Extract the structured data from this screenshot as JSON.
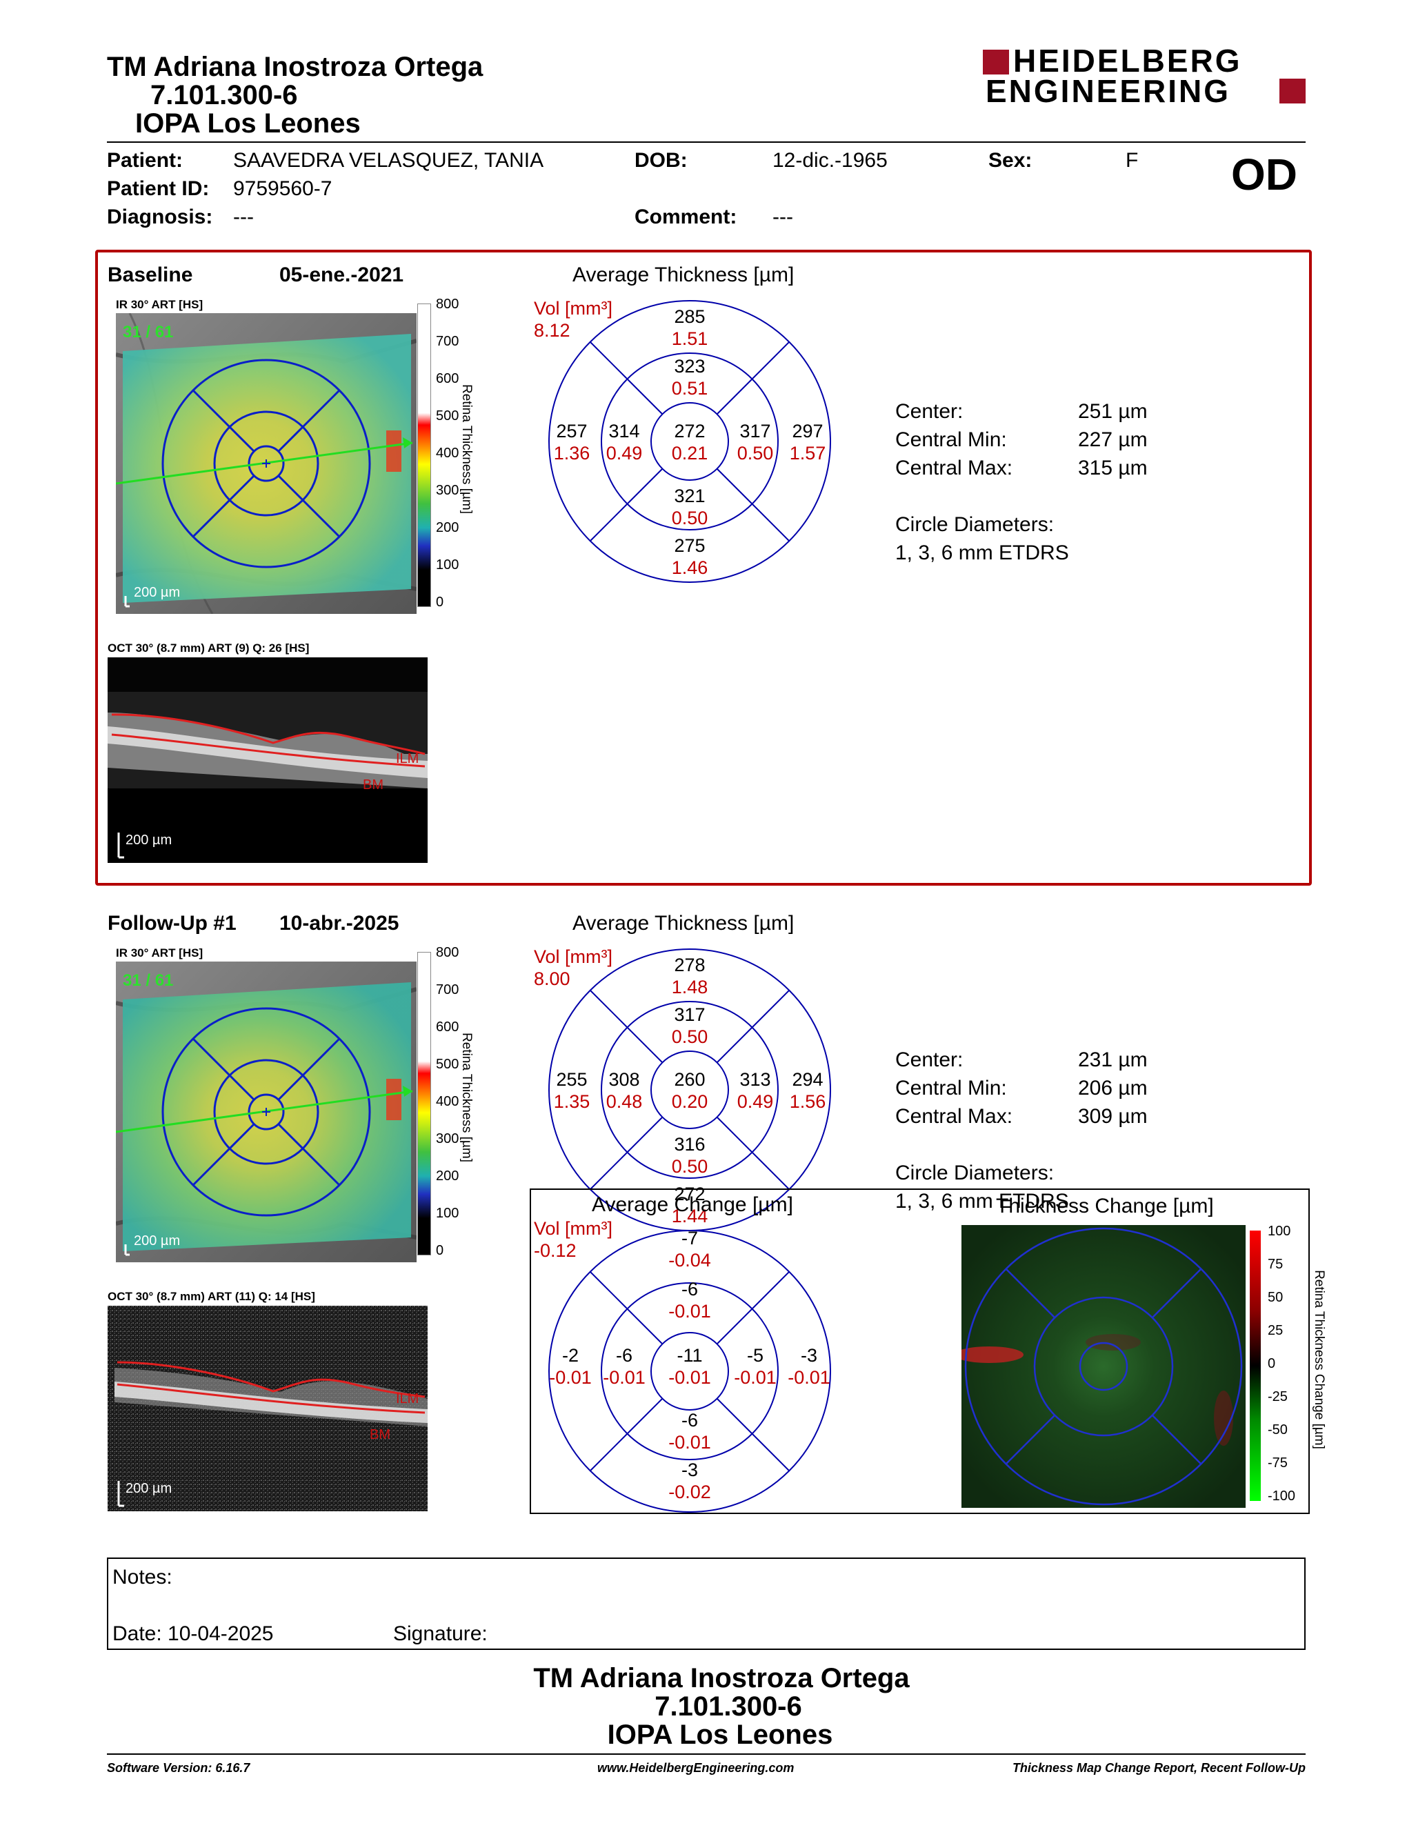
{
  "header": {
    "clinician": "TM Adriana Inostroza Ortega",
    "id_number": "7.101.300-6",
    "center": "IOPA Los Leones",
    "logo_line1": "HEIDELBERG",
    "logo_line2": "ENGINEERING"
  },
  "patient": {
    "patient_label": "Patient:",
    "patient_name": "SAAVEDRA VELASQUEZ, TANIA",
    "id_label": "Patient ID:",
    "id_value": "9759560-7",
    "diagnosis_label": "Diagnosis:",
    "diagnosis_value": "---",
    "dob_label": "DOB:",
    "dob_value": "12-dic.-1965",
    "comment_label": "Comment:",
    "comment_value": "---",
    "sex_label": "Sex:",
    "sex_value": "F",
    "eye": "OD"
  },
  "baseline": {
    "title": "Baseline",
    "date": "05-ene.-2021",
    "ir_label": "IR 30° ART [HS]",
    "ir_counter": "31 / 61",
    "ir_scale": "200 µm",
    "colorbar_ticks": [
      "800",
      "700",
      "600",
      "500",
      "400",
      "300",
      "200",
      "100",
      "0"
    ],
    "colorbar_title": "Retina Thickness [µm]",
    "oct_label": "OCT 30° (8.7 mm) ART (9) Q: 26 [HS]",
    "oct_scale": "200 µm",
    "ilm": "ILM",
    "bm": "BM",
    "avg_title": "Average Thickness [µm]",
    "vol_label": "Vol [mm³]",
    "vol_value": "8.12",
    "grid": {
      "outer_top": {
        "t": "285",
        "v": "1.51"
      },
      "inner_top": {
        "t": "323",
        "v": "0.51"
      },
      "outer_left": {
        "t": "257",
        "v": "1.36"
      },
      "inner_left": {
        "t": "314",
        "v": "0.49"
      },
      "center": {
        "t": "272",
        "v": "0.21"
      },
      "inner_right": {
        "t": "317",
        "v": "0.50"
      },
      "outer_right": {
        "t": "297",
        "v": "1.57"
      },
      "inner_bottom": {
        "t": "321",
        "v": "0.50"
      },
      "outer_bottom": {
        "t": "275",
        "v": "1.46"
      }
    },
    "stats": {
      "center_label": "Center:",
      "center_value": "251 µm",
      "min_label": "Central Min:",
      "min_value": "227 µm",
      "max_label": "Central Max:",
      "max_value": "315 µm",
      "circle_label": "Circle Diameters:",
      "circle_value": "1, 3, 6 mm ETDRS"
    }
  },
  "followup": {
    "title": "Follow-Up #1",
    "date": "10-abr.-2025",
    "ir_label": "IR 30° ART [HS]",
    "ir_counter": "31 / 61",
    "ir_scale": "200 µm",
    "colorbar_ticks": [
      "800",
      "700",
      "600",
      "500",
      "400",
      "300",
      "200",
      "100",
      "0"
    ],
    "colorbar_title": "Retina Thickness [µm]",
    "oct_label": "OCT 30° (8.7 mm) ART (11) Q: 14 [HS]",
    "oct_scale": "200 µm",
    "ilm": "ILM",
    "bm": "BM",
    "avg_title": "Average Thickness [µm]",
    "vol_label": "Vol [mm³]",
    "vol_value": "8.00",
    "grid": {
      "outer_top": {
        "t": "278",
        "v": "1.48"
      },
      "inner_top": {
        "t": "317",
        "v": "0.50"
      },
      "outer_left": {
        "t": "255",
        "v": "1.35"
      },
      "inner_left": {
        "t": "308",
        "v": "0.48"
      },
      "center": {
        "t": "260",
        "v": "0.20"
      },
      "inner_right": {
        "t": "313",
        "v": "0.49"
      },
      "outer_right": {
        "t": "294",
        "v": "1.56"
      },
      "inner_bottom": {
        "t": "316",
        "v": "0.50"
      },
      "outer_bottom": {
        "t": "272",
        "v": "1.44"
      }
    },
    "stats": {
      "center_label": "Center:",
      "center_value": "231 µm",
      "min_label": "Central Min:",
      "min_value": "206 µm",
      "max_label": "Central Max:",
      "max_value": "309 µm",
      "circle_label": "Circle Diameters:",
      "circle_value": "1, 3, 6 mm ETDRS"
    }
  },
  "change": {
    "avg_title": "Average Change [µm]",
    "vol_label": "Vol [mm³]",
    "vol_value": "-0.12",
    "grid": {
      "outer_top": {
        "t": "-7",
        "v": "-0.04"
      },
      "inner_top": {
        "t": "-6",
        "v": "-0.01"
      },
      "outer_left": {
        "t": "-2",
        "v": "-0.01"
      },
      "inner_left": {
        "t": "-6",
        "v": "-0.01"
      },
      "center": {
        "t": "-11",
        "v": "-0.01"
      },
      "inner_right": {
        "t": "-5",
        "v": "-0.01"
      },
      "outer_right": {
        "t": "-3",
        "v": "-0.01"
      },
      "inner_bottom": {
        "t": "-6",
        "v": "-0.01"
      },
      "outer_bottom": {
        "t": "-3",
        "v": "-0.02"
      }
    },
    "map_title": "Thickness Change [µm]",
    "map_ticks": [
      "100",
      "75",
      "50",
      "25",
      "0",
      "-25",
      "-50",
      "-75",
      "-100"
    ],
    "map_colorbar_title": "Retina Thickness Change [µm]"
  },
  "notes": {
    "notes_label": "Notes:",
    "date_label": "Date: 10-04-2025",
    "signature_label": "Signature:"
  },
  "footer": {
    "clinician": "TM Adriana Inostroza Ortega",
    "id_number": "7.101.300-6",
    "center": "IOPA Los Leones",
    "software": "Software Version: 6.16.7",
    "website": "www.HeidelbergEngineering.com",
    "report_type": "Thickness Map Change Report, Recent Follow-Up"
  },
  "colors": {
    "frame_red": "#b30000",
    "grid_blue": "#0000aa",
    "value_red": "#d00000",
    "logo_red": "#a01025"
  }
}
